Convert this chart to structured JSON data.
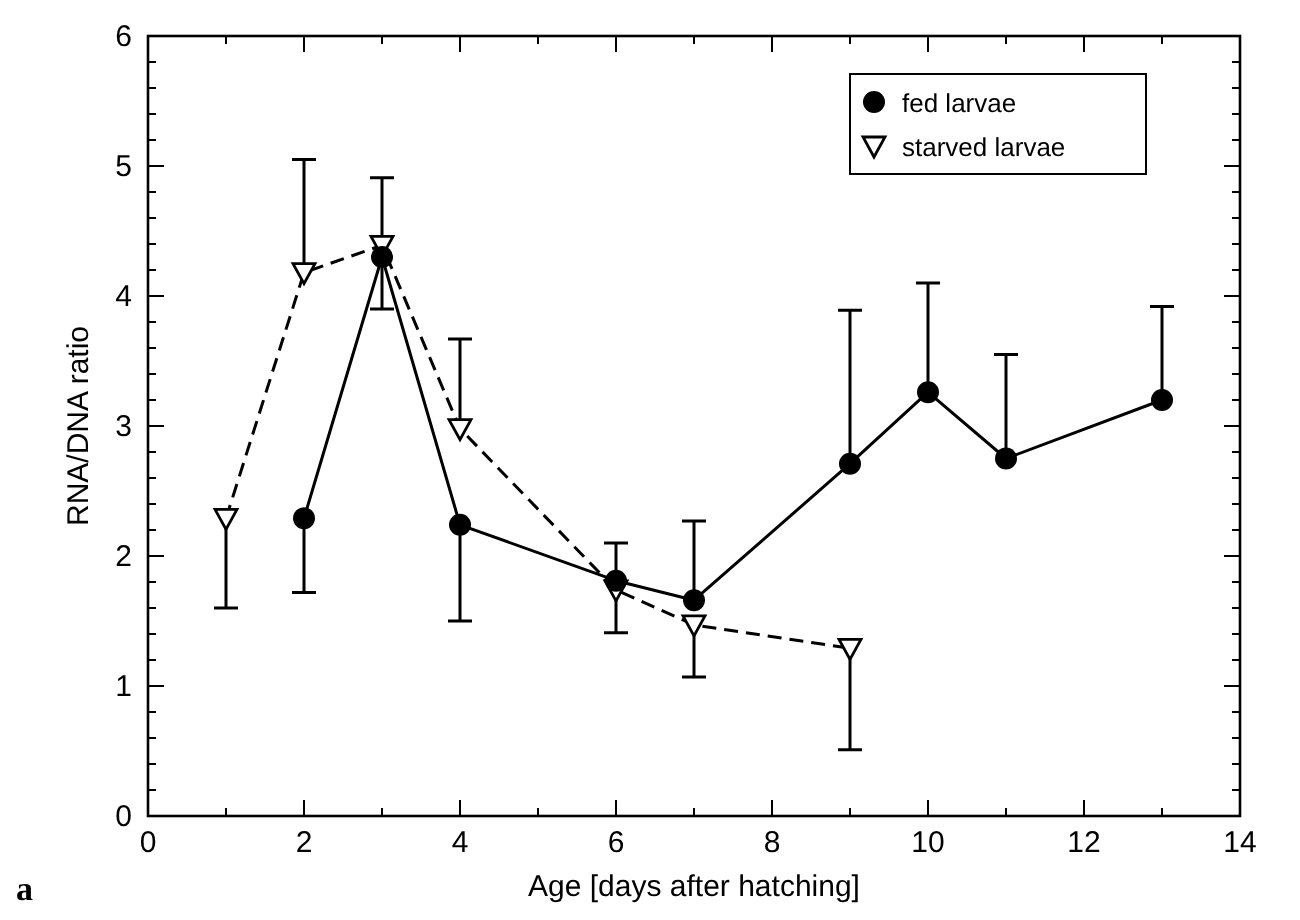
{
  "chart_data": {
    "type": "line",
    "xlabel": "Age [days after hatching]",
    "ylabel": "RNA/DNA ratio",
    "annotations": [
      "a"
    ],
    "xlim": [
      0,
      14
    ],
    "ylim": [
      0,
      6
    ],
    "xticks": [
      0,
      {
        "value": 1,
        "label": null
      },
      2,
      {
        "value": 3,
        "label": null
      },
      4,
      {
        "value": 5,
        "label": null
      },
      6,
      {
        "value": 7,
        "label": null
      },
      8,
      {
        "value": 9,
        "label": null
      },
      10,
      {
        "value": 11,
        "label": null
      },
      12,
      {
        "value": 13,
        "label": null
      },
      14
    ],
    "yticks": [
      0,
      {
        "value": 0.2,
        "label": null
      },
      {
        "value": 0.4,
        "label": null
      },
      {
        "value": 0.6,
        "label": null
      },
      {
        "value": 0.8,
        "label": null
      },
      1,
      {
        "value": 1.2,
        "label": null
      },
      {
        "value": 1.4,
        "label": null
      },
      {
        "value": 1.6,
        "label": null
      },
      {
        "value": 1.8,
        "label": null
      },
      2,
      {
        "value": 2.2,
        "label": null
      },
      {
        "value": 2.4,
        "label": null
      },
      {
        "value": 2.6,
        "label": null
      },
      {
        "value": 2.8,
        "label": null
      },
      3,
      {
        "value": 3.2,
        "label": null
      },
      {
        "value": 3.4,
        "label": null
      },
      {
        "value": 3.6,
        "label": null
      },
      {
        "value": 3.8,
        "label": null
      },
      4,
      {
        "value": 4.2,
        "label": null
      },
      {
        "value": 4.4,
        "label": null
      },
      {
        "value": 4.6,
        "label": null
      },
      {
        "value": 4.8,
        "label": null
      },
      5,
      {
        "value": 5.2,
        "label": null
      },
      {
        "value": 5.4,
        "label": null
      },
      {
        "value": 5.6,
        "label": null
      },
      {
        "value": 5.8,
        "label": null
      },
      6
    ],
    "grid": false,
    "legend": "top right",
    "series": [
      {
        "name": "fed larvae",
        "color": "#000000",
        "marker": "circle",
        "line_style": "solid",
        "x": [
          2,
          3,
          4,
          6,
          7,
          9,
          10,
          11,
          13
        ],
        "values": [
          2.29,
          4.3,
          2.24,
          1.81,
          1.66,
          2.71,
          3.26,
          2.75,
          3.2
        ],
        "errors": [
          [
            1.72,
            2.29
          ],
          [
            3.9,
            4.3
          ],
          [
            1.5,
            2.24
          ],
          [
            1.81,
            2.1
          ],
          [
            1.66,
            2.27
          ],
          [
            2.71,
            3.89
          ],
          [
            3.26,
            4.1
          ],
          [
            2.75,
            3.55
          ],
          [
            3.2,
            3.92
          ]
        ]
      },
      {
        "name": "starved larvae",
        "color": "#000000",
        "marker": "triangle",
        "line_style": "dashed",
        "x": [
          1,
          2,
          3,
          4,
          6,
          7,
          9
        ],
        "values": [
          2.29,
          4.18,
          4.39,
          2.98,
          1.74,
          1.47,
          1.29
        ],
        "errors": [
          [
            1.6,
            2.29
          ],
          [
            4.18,
            5.05
          ],
          [
            4.39,
            4.91
          ],
          [
            2.98,
            3.67
          ],
          [
            1.41,
            1.74
          ],
          [
            1.07,
            1.47
          ],
          [
            0.51,
            1.29
          ]
        ]
      }
    ]
  }
}
